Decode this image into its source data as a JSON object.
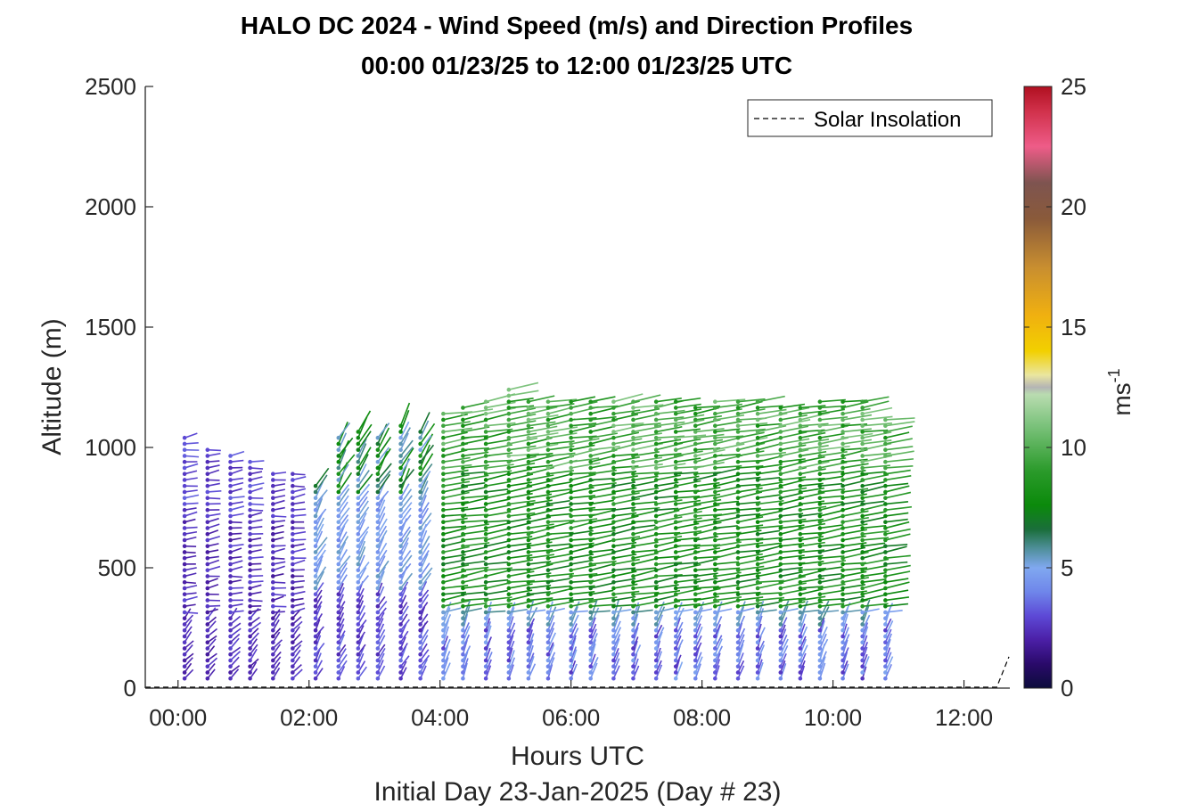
{
  "chart_data": {
    "type": "scatter",
    "subtype": "wind-barb-profile",
    "title": "HALO DC 2024 - Wind Speed (m/s) and Direction Profiles",
    "subtitle": "00:00 01/23/25 to 12:00 01/23/25  UTC",
    "xlabel": "Hours UTC",
    "xlabel2": "Initial Day 23-Jan-2025 (Day # 23)",
    "ylabel": "Altitude (m)",
    "colorbar_label": "ms",
    "colorbar_label_exp": "-1",
    "xlim": [
      -0.5,
      12.7
    ],
    "ylim": [
      0,
      2500
    ],
    "clim": [
      0,
      25
    ],
    "x_ticks": [
      "00:00",
      "02:00",
      "04:00",
      "06:00",
      "08:00",
      "10:00",
      "12:00"
    ],
    "x_tick_values": [
      0,
      2,
      4,
      6,
      8,
      10,
      12
    ],
    "y_ticks": [
      "0",
      "500",
      "1000",
      "1500",
      "2000",
      "2500"
    ],
    "y_tick_values": [
      0,
      500,
      1000,
      1500,
      2000,
      2500
    ],
    "colorbar_ticks": [
      "0",
      "5",
      "10",
      "15",
      "20",
      "25"
    ],
    "colorbar_tick_values": [
      0,
      5,
      10,
      15,
      20,
      25
    ],
    "legend": {
      "placement": "top-right",
      "entries": [
        "Solar Insolation"
      ]
    },
    "grid": false,
    "profile_times": [
      0.1,
      0.45,
      0.8,
      1.1,
      1.45,
      1.75,
      2.1,
      2.45,
      2.75,
      3.05,
      3.4,
      3.7,
      4.05,
      4.35,
      4.7,
      5.05,
      5.35,
      5.65,
      6.0,
      6.3,
      6.65,
      6.95,
      7.3,
      7.6,
      7.9,
      8.2,
      8.55,
      8.85,
      9.2,
      9.5,
      9.8,
      10.15,
      10.45,
      10.8
    ],
    "profile_top_altitudes": [
      1050,
      1000,
      980,
      950,
      910,
      900,
      860,
      1050,
      1080,
      1060,
      1100,
      1070,
      1150,
      1180,
      1200,
      1250,
      1200,
      1200,
      1210,
      1210,
      1200,
      1190,
      1200,
      1190,
      1180,
      1200,
      1200,
      1190,
      1180,
      1180,
      1200,
      1200,
      1190,
      1130
    ],
    "profile_bottom_altitude": 40,
    "profile_spacing_m": 25,
    "speed_regimes": [
      {
        "hours": [
          0,
          2
        ],
        "speed_ms": [
          2,
          3
        ],
        "color": "purple"
      },
      {
        "hours": [
          2,
          4
        ],
        "speed_ms": [
          3,
          5
        ],
        "color": "light-blue"
      },
      {
        "hours": [
          4,
          11
        ],
        "speed_ms": [
          7,
          10
        ],
        "color": "green"
      }
    ],
    "solar_insolation_line": {
      "style": "dashed",
      "value_near_zero": true,
      "rise_start_hour": 12.5
    },
    "colormap_stops": [
      {
        "v": 0,
        "c": "#0c0c3c"
      },
      {
        "v": 1,
        "c": "#2a0a6a"
      },
      {
        "v": 2,
        "c": "#4b1fa6"
      },
      {
        "v": 3,
        "c": "#5d49d6"
      },
      {
        "v": 4,
        "c": "#6f86ea"
      },
      {
        "v": 5,
        "c": "#80a8f0"
      },
      {
        "v": 5.8,
        "c": "#4f8f9a"
      },
      {
        "v": 6.6,
        "c": "#1a6e3a"
      },
      {
        "v": 7.6,
        "c": "#0b8a0b"
      },
      {
        "v": 9,
        "c": "#2a9a2a"
      },
      {
        "v": 11,
        "c": "#7fc47f"
      },
      {
        "v": 12.2,
        "c": "#b9dcb0"
      },
      {
        "v": 12.5,
        "c": "#b4b4b4"
      },
      {
        "v": 13,
        "c": "#eae6a0"
      },
      {
        "v": 14,
        "c": "#f2d000"
      },
      {
        "v": 15.5,
        "c": "#f0b010"
      },
      {
        "v": 17.5,
        "c": "#c88e30"
      },
      {
        "v": 19.5,
        "c": "#8a5a3a"
      },
      {
        "v": 21,
        "c": "#7e5450"
      },
      {
        "v": 22.5,
        "c": "#ee5c88"
      },
      {
        "v": 24,
        "c": "#d0304a"
      },
      {
        "v": 25,
        "c": "#b01020"
      }
    ]
  }
}
